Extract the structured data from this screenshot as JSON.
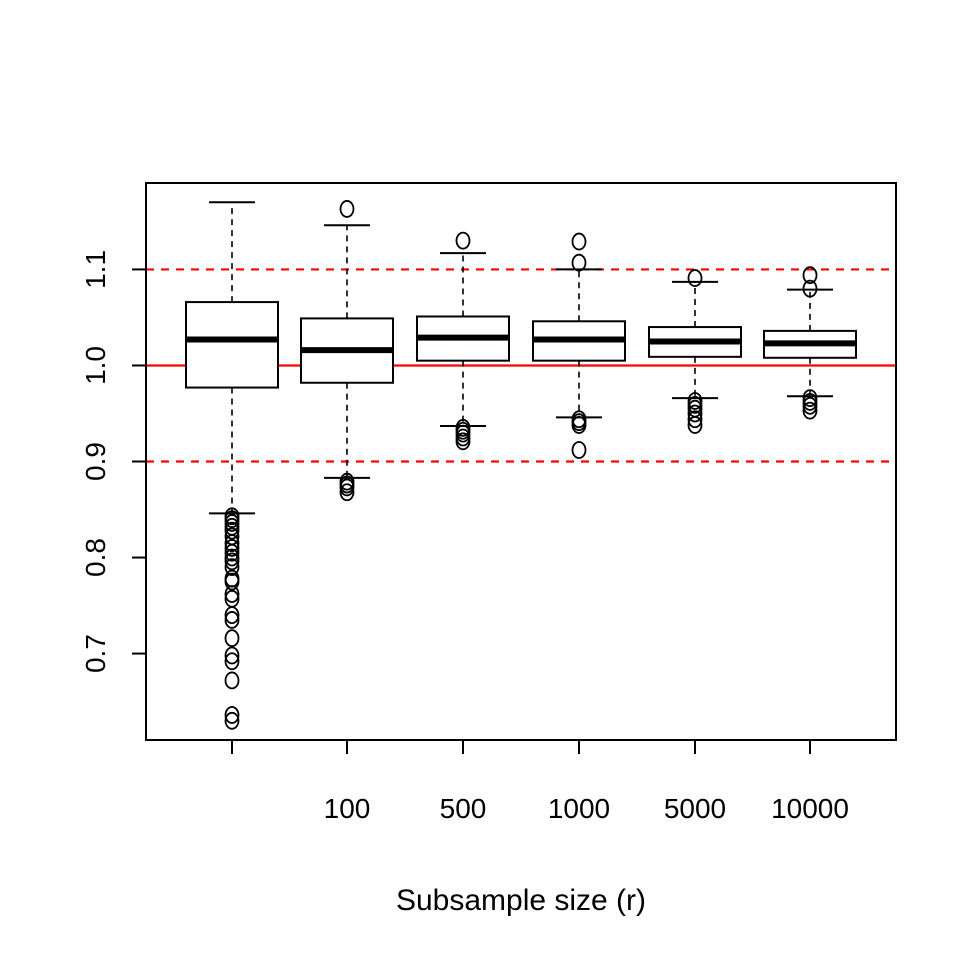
{
  "chart_data": {
    "type": "boxplot",
    "xlabel": "Subsample size (r)",
    "ylabel": "",
    "ylim": [
      0.61,
      1.19
    ],
    "yticks": [
      0.7,
      0.8,
      0.9,
      1.0,
      1.1
    ],
    "ytick_labels": [
      "0.7",
      "0.8",
      "0.9",
      "1.0",
      "1.1"
    ],
    "categories": [
      "",
      "100",
      "500",
      "1000",
      "5000",
      "10000"
    ],
    "boxes": [
      {
        "category": "",
        "q1": 0.977,
        "median": 1.027,
        "q3": 1.066,
        "whisker_low": 0.846,
        "whisker_high": 1.17,
        "outliers": [
          0.843,
          0.84,
          0.836,
          0.832,
          0.828,
          0.822,
          0.815,
          0.81,
          0.805,
          0.8,
          0.796,
          0.79,
          0.778,
          0.775,
          0.762,
          0.757,
          0.74,
          0.735,
          0.716,
          0.698,
          0.692,
          0.672,
          0.636,
          0.63
        ]
      },
      {
        "category": "100",
        "q1": 0.982,
        "median": 1.016,
        "q3": 1.049,
        "whisker_low": 0.883,
        "whisker_high": 1.146,
        "outliers": [
          0.879,
          0.876,
          0.873,
          0.868,
          1.163
        ]
      },
      {
        "category": "500",
        "q1": 1.005,
        "median": 1.029,
        "q3": 1.051,
        "whisker_low": 0.937,
        "whisker_high": 1.117,
        "outliers": [
          0.935,
          0.932,
          0.929,
          0.925,
          0.921,
          1.13
        ]
      },
      {
        "category": "1000",
        "q1": 1.005,
        "median": 1.027,
        "q3": 1.046,
        "whisker_low": 0.946,
        "whisker_high": 1.1,
        "outliers": [
          0.944,
          0.941,
          0.938,
          0.912,
          1.107,
          1.129
        ]
      },
      {
        "category": "5000",
        "q1": 1.009,
        "median": 1.025,
        "q3": 1.04,
        "whisker_low": 0.966,
        "whisker_high": 1.087,
        "outliers": [
          0.963,
          0.959,
          0.955,
          0.95,
          0.944,
          0.938,
          1.091
        ]
      },
      {
        "category": "10000",
        "q1": 1.008,
        "median": 1.023,
        "q3": 1.036,
        "whisker_low": 0.968,
        "whisker_high": 1.079,
        "outliers": [
          0.966,
          0.962,
          0.958,
          0.953,
          1.08,
          1.094
        ]
      }
    ],
    "reference_lines": [
      {
        "y": 1.0,
        "color": "#ff0000",
        "style": "solid"
      },
      {
        "y": 1.1,
        "color": "#ff0000",
        "style": "dashed"
      },
      {
        "y": 0.9,
        "color": "#ff0000",
        "style": "dashed"
      }
    ],
    "grid": false,
    "colors": {
      "box": "#000000",
      "reference": "#ff0000",
      "background": "#ffffff"
    }
  }
}
